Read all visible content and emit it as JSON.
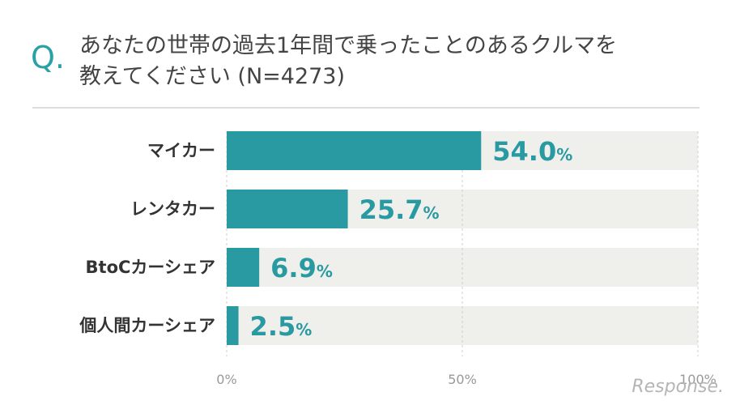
{
  "question": {
    "marker": "Q.",
    "line1": "あなたの世帯の過去1年間で乗ったことのあるクルマを",
    "line2": "教えてください (N=4273)"
  },
  "watermark": "Response.",
  "colors": {
    "bar": "#2a9aa2",
    "track": "#efefec",
    "value_text": "#2a9aa2",
    "label_text": "#333333",
    "tick_text": "#999999"
  },
  "chart_data": {
    "type": "bar",
    "orientation": "horizontal",
    "categories": [
      "マイカー",
      "レンタカー",
      "BtoCカーシェア",
      "個人間カーシェア"
    ],
    "values": [
      54.0,
      25.7,
      6.9,
      2.5
    ],
    "value_labels": [
      "54.0",
      "25.7",
      "6.9",
      "2.5"
    ],
    "value_unit": "%",
    "xlim": [
      0,
      100
    ],
    "x_ticks": [
      {
        "value": 0,
        "label": "0%"
      },
      {
        "value": 50,
        "label": "50%"
      },
      {
        "value": 100,
        "label": "100%"
      }
    ],
    "grid": true
  }
}
